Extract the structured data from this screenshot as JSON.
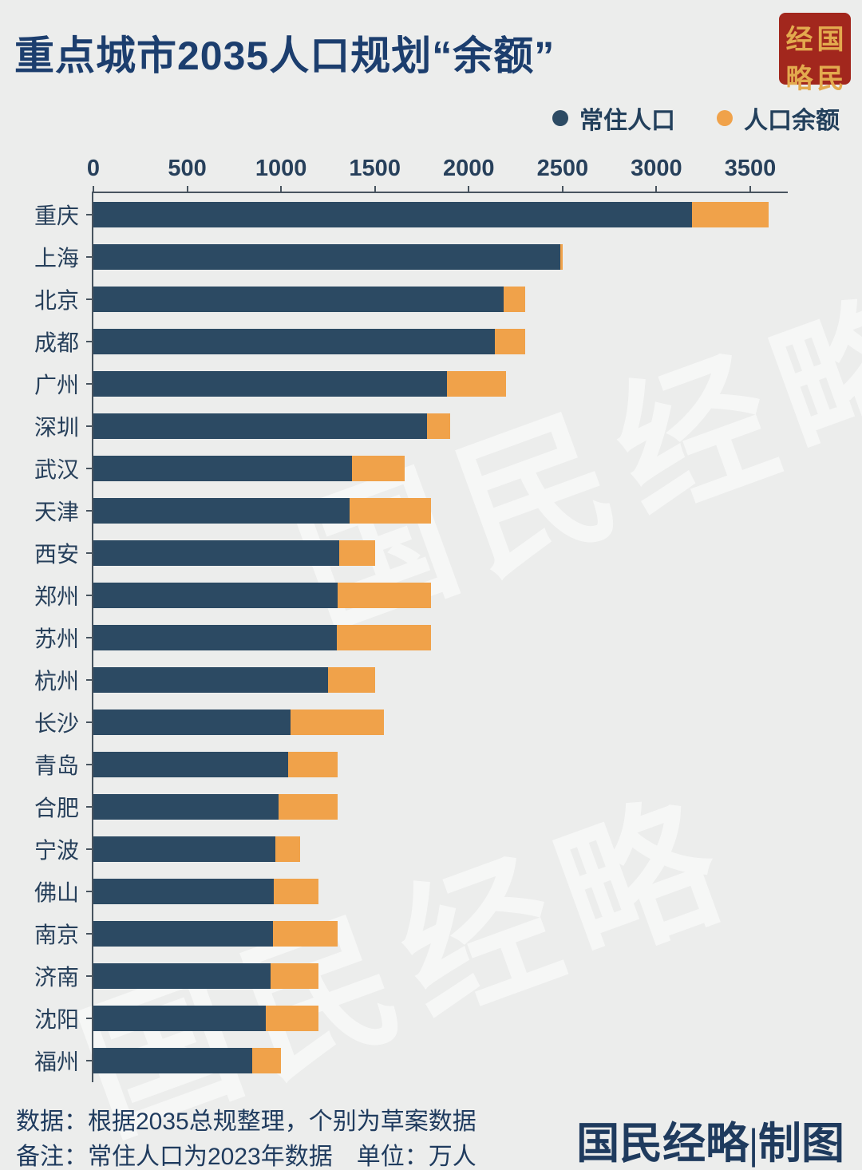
{
  "title": "重点城市2035人口规划“余额”",
  "seal": {
    "chars": [
      "经",
      "国",
      "略",
      "民"
    ],
    "text": "国民经略"
  },
  "legend": [
    {
      "label": "常住人口",
      "color": "#2c4a63"
    },
    {
      "label": "人口余额",
      "color": "#f0a24a"
    }
  ],
  "watermark": {
    "text": "国民经略"
  },
  "chart_data": {
    "type": "bar",
    "orientation": "horizontal",
    "stacked": true,
    "title": "重点城市2035人口规划“余额”",
    "unit": "万人",
    "x_ticks": [
      0,
      500,
      1000,
      1500,
      2000,
      2500,
      3000,
      3500
    ],
    "xlim": [
      0,
      3700
    ],
    "categories": [
      "重庆",
      "上海",
      "北京",
      "成都",
      "广州",
      "深圳",
      "武汉",
      "天津",
      "西安",
      "郑州",
      "苏州",
      "杭州",
      "长沙",
      "青岛",
      "合肥",
      "宁波",
      "佛山",
      "南京",
      "济南",
      "沈阳",
      "福州"
    ],
    "series": [
      {
        "name": "常住人口",
        "color": "#2c4a63",
        "values": [
          3191,
          2487,
          2186,
          2140,
          1883,
          1779,
          1377,
          1364,
          1308,
          1301,
          1296,
          1252,
          1051,
          1037,
          985,
          970,
          962,
          955,
          944,
          920,
          847
        ]
      },
      {
        "name": "人口余额",
        "color": "#f0a24a",
        "values": [
          409,
          13,
          114,
          160,
          317,
          121,
          283,
          436,
          192,
          499,
          504,
          248,
          499,
          263,
          315,
          130,
          238,
          345,
          256,
          280,
          153
        ]
      }
    ]
  },
  "footer": {
    "line1": "数据：根据2035总规整理，个别为草案数据",
    "line2": "备注：常住人口为2023年数据　单位：万人",
    "credit": "国民经略|制图"
  }
}
